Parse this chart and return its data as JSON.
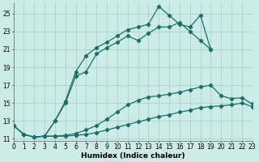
{
  "xlabel": "Humidex (Indice chaleur)",
  "ylabel": "",
  "bg_color": "#cceae7",
  "grid_color": "#aad4cf",
  "line_color": "#1a7068",
  "marker": "D",
  "markersize": 2.2,
  "linewidth": 0.9,
  "lines": [
    {
      "x": [
        0,
        1,
        2,
        3,
        4,
        5,
        6,
        7,
        8,
        9,
        10,
        11,
        12,
        13,
        14,
        15,
        16,
        17,
        18,
        19,
        20,
        21,
        22,
        23
      ],
      "y": [
        12.5,
        11.5,
        11.2,
        11.3,
        11.3,
        11.3,
        11.4,
        11.5,
        11.7,
        12.0,
        12.3,
        12.6,
        12.9,
        13.2,
        13.5,
        13.7,
        14.0,
        14.2,
        14.5,
        14.6,
        14.7,
        14.8,
        15.0,
        14.6
      ]
    },
    {
      "x": [
        0,
        1,
        2,
        3,
        4,
        5,
        6,
        7,
        8,
        9,
        10,
        11,
        12,
        13,
        14,
        15,
        16,
        17,
        18,
        19,
        20,
        21,
        22,
        23
      ],
      "y": [
        12.5,
        11.5,
        11.2,
        11.3,
        11.3,
        11.4,
        11.6,
        12.0,
        12.5,
        13.2,
        14.0,
        14.8,
        15.3,
        15.7,
        15.8,
        16.0,
        16.2,
        16.5,
        16.8,
        17.0,
        15.8,
        15.5,
        15.6,
        14.9
      ]
    },
    {
      "x": [
        2,
        3,
        4,
        5,
        6,
        7,
        8,
        9,
        10,
        11,
        12,
        13,
        14,
        15,
        16,
        17,
        18,
        19,
        20,
        21,
        22,
        23
      ],
      "y": [
        11.2,
        11.3,
        13.0,
        15.0,
        18.0,
        18.5,
        20.5,
        21.2,
        21.8,
        22.5,
        22.0,
        22.8,
        23.5,
        23.5,
        24.0,
        23.0,
        22.0,
        21.0,
        null,
        null,
        null,
        null
      ]
    },
    {
      "x": [
        0,
        1,
        2,
        3,
        4,
        5,
        6,
        7,
        8,
        9,
        10,
        11,
        12,
        13,
        14,
        15,
        16,
        17,
        18,
        19,
        20,
        21,
        22,
        23
      ],
      "y": [
        12.5,
        11.5,
        11.2,
        11.3,
        13.0,
        15.2,
        18.5,
        20.3,
        21.2,
        21.8,
        22.5,
        23.2,
        23.5,
        23.8,
        25.8,
        24.8,
        23.8,
        23.5,
        24.8,
        21.0,
        null,
        null,
        null,
        null
      ]
    }
  ],
  "xlim": [
    0,
    23
  ],
  "ylim": [
    10.8,
    26.2
  ],
  "yticks": [
    11,
    13,
    15,
    17,
    19,
    21,
    23,
    25
  ],
  "xticks": [
    0,
    1,
    2,
    3,
    4,
    5,
    6,
    7,
    8,
    9,
    10,
    11,
    12,
    13,
    14,
    15,
    16,
    17,
    18,
    19,
    20,
    21,
    22,
    23
  ],
  "tick_fontsize": 5.5,
  "xlabel_fontsize": 6.5
}
